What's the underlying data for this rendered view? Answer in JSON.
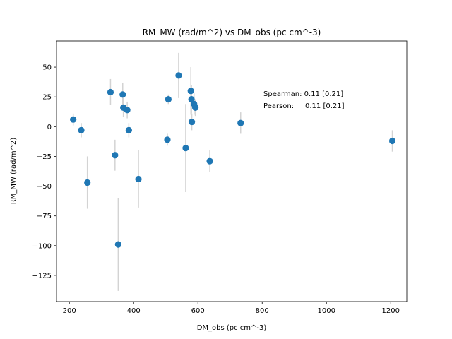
{
  "chart_data": {
    "type": "scatter",
    "title": "RM_MW (rad/m^2) vs DM_obs (pc cm^-3)",
    "xlabel": "DM_obs (pc cm^-3)",
    "ylabel": "RM_MW (rad/m^2)",
    "xlim": [
      160,
      1250
    ],
    "ylim": [
      -147,
      72
    ],
    "xticks": [
      200,
      400,
      600,
      800,
      1000,
      1200
    ],
    "yticks": [
      -125,
      -100,
      -75,
      -50,
      -25,
      0,
      25,
      50
    ],
    "x": [
      212,
      237,
      256,
      328,
      342,
      352,
      366,
      368,
      380,
      385,
      415,
      505,
      508,
      540,
      562,
      578,
      580,
      581,
      588,
      592,
      637,
      733,
      1205
    ],
    "y": [
      6,
      -3,
      -47,
      29,
      -24,
      -99,
      27,
      16,
      14,
      -3,
      -44,
      -11,
      23,
      43,
      -18,
      30,
      23,
      4,
      19,
      16,
      -29,
      3,
      -12
    ],
    "yerr": [
      5,
      6,
      22,
      11,
      13,
      39,
      10,
      8,
      7,
      6,
      24,
      5,
      4,
      19,
      37,
      20,
      12,
      7,
      9,
      7,
      9,
      9,
      9
    ],
    "marker_color": "#1f77b4",
    "errorbar_color": "#d3d3d3",
    "annotations": [
      "Spearman: 0.11 [0.21]",
      "Pearson:     0.11 [0.21]"
    ],
    "grid": false
  }
}
